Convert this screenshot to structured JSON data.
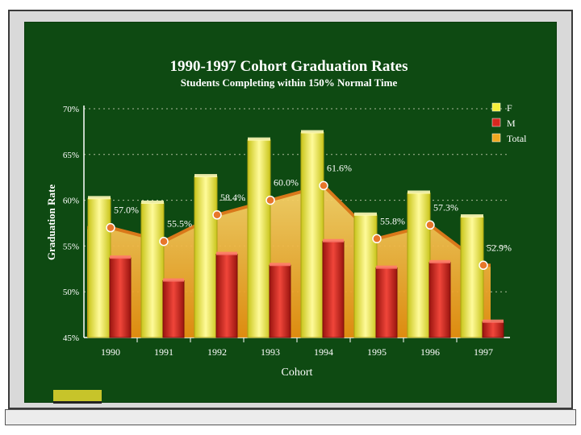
{
  "colors": {
    "board": "#0e4a12",
    "female": "#f4ef3a",
    "male": "#d8271f",
    "total_fill": "#f0a820",
    "total_line": "#d9781a",
    "text": "#ffffff"
  },
  "chart_data": {
    "type": "bar",
    "title": "1990-1997 Cohort Graduation Rates",
    "subtitle": "Students Completing within 150% Normal Time",
    "xlabel": "Cohort",
    "ylabel": "Graduation Rate",
    "ylim": [
      45,
      70
    ],
    "yticks": [
      "70%",
      "65%",
      "60%",
      "55%",
      "50%",
      "45%"
    ],
    "ytick_values": [
      70,
      65,
      60,
      55,
      50,
      45
    ],
    "grid": true,
    "legend_position": "top-right",
    "categories": [
      "1990",
      "1991",
      "1992",
      "1993",
      "1994",
      "1995",
      "1996",
      "1997"
    ],
    "series": [
      {
        "name": "F",
        "type": "bar",
        "values": [
          60.2,
          59.7,
          62.6,
          66.6,
          67.4,
          58.4,
          60.8,
          58.2
        ]
      },
      {
        "name": "M",
        "type": "bar",
        "values": [
          53.7,
          51.2,
          54.1,
          52.9,
          55.5,
          52.6,
          53.2,
          46.7
        ]
      },
      {
        "name": "Total",
        "type": "area",
        "values": [
          57.0,
          55.5,
          58.4,
          60.0,
          61.6,
          55.8,
          57.3,
          52.9
        ],
        "labels": [
          "57.0%",
          "55.5%",
          "58.4%",
          "60.0%",
          "61.6%",
          "55.8%",
          "57.3%",
          "52.9%"
        ]
      }
    ]
  }
}
